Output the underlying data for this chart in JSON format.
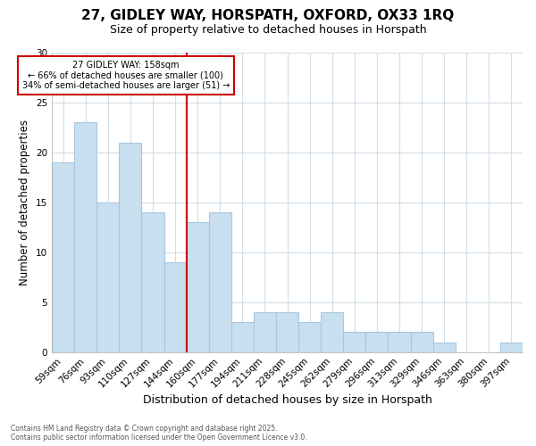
{
  "title": "27, GIDLEY WAY, HORSPATH, OXFORD, OX33 1RQ",
  "subtitle": "Size of property relative to detached houses in Horspath",
  "xlabel": "Distribution of detached houses by size in Horspath",
  "ylabel": "Number of detached properties",
  "categories": [
    "59sqm",
    "76sqm",
    "93sqm",
    "110sqm",
    "127sqm",
    "144sqm",
    "160sqm",
    "177sqm",
    "194sqm",
    "211sqm",
    "228sqm",
    "245sqm",
    "262sqm",
    "279sqm",
    "296sqm",
    "313sqm",
    "329sqm",
    "346sqm",
    "363sqm",
    "380sqm",
    "397sqm"
  ],
  "values": [
    19,
    23,
    15,
    21,
    14,
    9,
    13,
    14,
    3,
    4,
    4,
    3,
    4,
    2,
    2,
    2,
    2,
    1,
    0,
    0,
    1
  ],
  "bar_color": "#c8dff0",
  "bar_edge_color": "#a8c8e0",
  "vline_color": "#cc0000",
  "annotation_text": "27 GIDLEY WAY: 158sqm\n← 66% of detached houses are smaller (100)\n34% of semi-detached houses are larger (51) →",
  "annotation_box_edge": "#cc0000",
  "annotation_box_fill": "#ffffff",
  "ylim": [
    0,
    30
  ],
  "yticks": [
    0,
    5,
    10,
    15,
    20,
    25,
    30
  ],
  "footer_line1": "Contains HM Land Registry data © Crown copyright and database right 2025.",
  "footer_line2": "Contains public sector information licensed under the Open Government Licence v3.0.",
  "background_color": "#ffffff",
  "grid_color": "#d0dde8",
  "title_fontsize": 11,
  "subtitle_fontsize": 9,
  "tick_fontsize": 7.5,
  "label_fontsize": 9,
  "ylabel_fontsize": 8.5
}
